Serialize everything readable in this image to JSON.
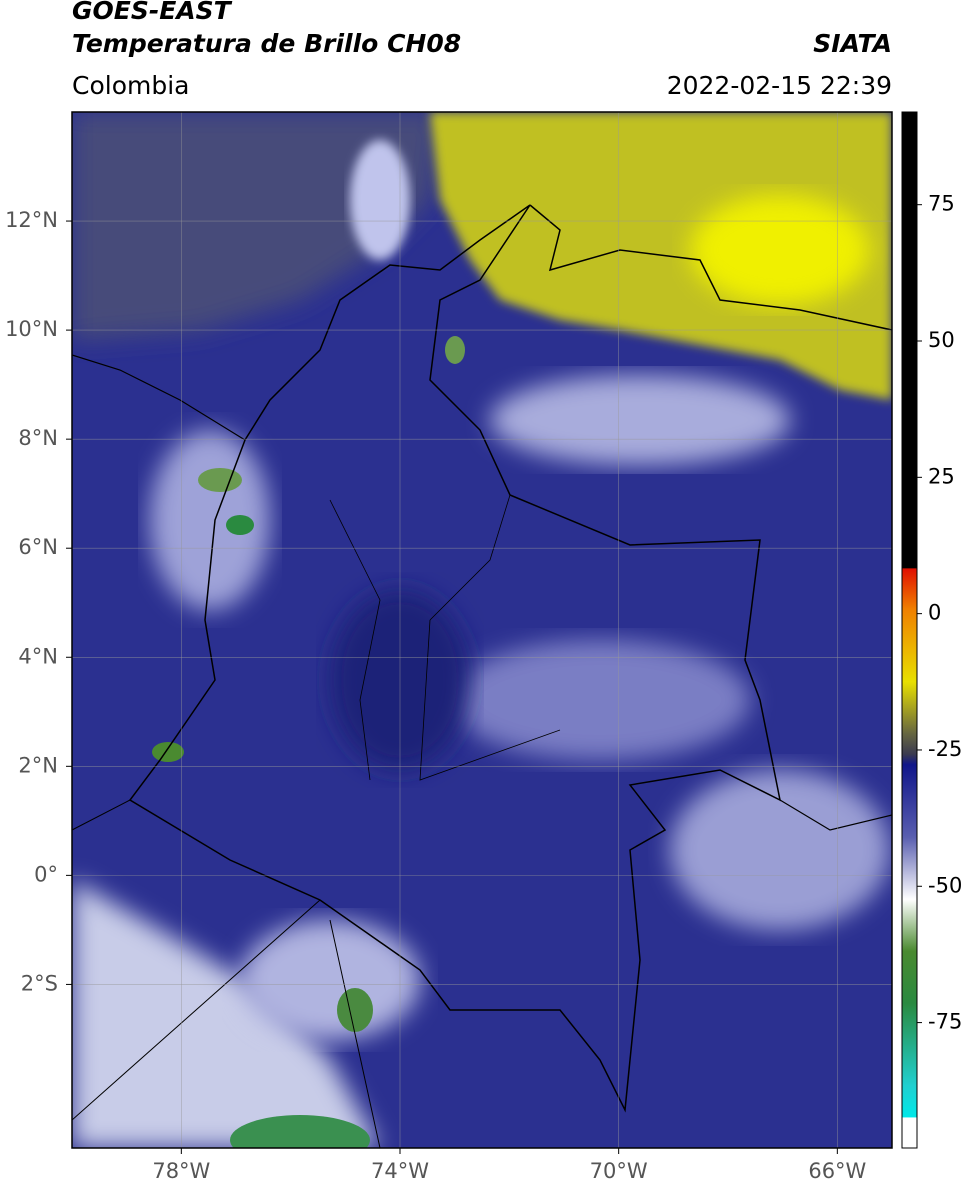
{
  "header": {
    "title": "GOES-EAST",
    "subtitle": "Temperatura de Brillo CH08",
    "source": "SIATA",
    "region": "Colombia",
    "datetime": "2022-02-15 22:39"
  },
  "map": {
    "xlim": [
      -80,
      -65
    ],
    "ylim": [
      -5,
      14
    ],
    "xticks": [
      {
        "value": -78,
        "label": "78°W"
      },
      {
        "value": -74,
        "label": "74°W"
      },
      {
        "value": -70,
        "label": "70°W"
      },
      {
        "value": -66,
        "label": "66°W"
      }
    ],
    "yticks": [
      {
        "value": 12,
        "label": "12°N"
      },
      {
        "value": 10,
        "label": "10°N"
      },
      {
        "value": 8,
        "label": "8°N"
      },
      {
        "value": 6,
        "label": "6°N"
      },
      {
        "value": 4,
        "label": "4°N"
      },
      {
        "value": 2,
        "label": "2°N"
      },
      {
        "value": 0,
        "label": "0°"
      },
      {
        "value": -2,
        "label": "2°S"
      }
    ]
  },
  "colorbar": {
    "lim": [
      -98,
      92
    ],
    "ticks": [
      75,
      50,
      25,
      0,
      -25,
      -50,
      -75
    ]
  }
}
